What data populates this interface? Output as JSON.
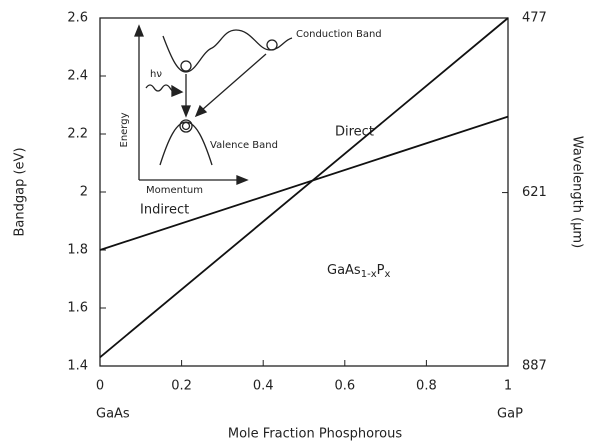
{
  "chart_data": {
    "type": "line",
    "x": [
      0,
      1
    ],
    "series": [
      {
        "color": "#111111",
        "values": [
          1.43,
          2.6
        ]
      },
      {
        "color": "#111111",
        "values": [
          1.8,
          2.26
        ]
      }
    ],
    "xlim": [
      0,
      1
    ],
    "xticks": [
      0,
      0.2,
      0.4,
      0.6,
      0.8,
      1
    ],
    "ylim": [
      1.4,
      2.6
    ],
    "yticks": [
      1.4,
      1.6,
      1.8,
      2,
      2.2,
      2.4,
      2.6
    ],
    "y2scale": "reciprocal",
    "y2lim": [
      887,
      477
    ],
    "y2ticks": [
      887,
      621,
      477
    ],
    "ylabel": "Bandgap (eV)",
    "y2label": "Wavelength (μm)",
    "xlabel": "Mole Fraction Phosphorous",
    "x_end_labels": [
      "GaAs",
      "GaP"
    ],
    "annotations": {
      "direct": "Direct",
      "indirect": "Indirect",
      "compound": [
        "GaAs",
        "1-x",
        "P",
        "x"
      ],
      "conduction": "Conduction Band",
      "valence": "Valence Band",
      "energy": "Energy",
      "momentum": "Momentum",
      "photon": "hν"
    }
  }
}
